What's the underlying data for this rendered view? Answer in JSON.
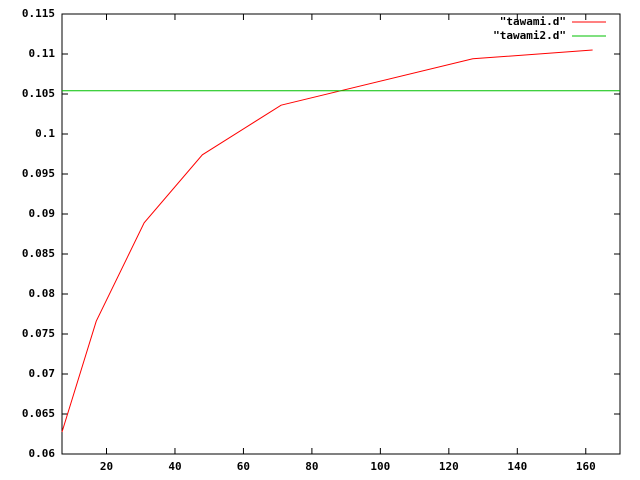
{
  "chart_data": {
    "type": "line",
    "xlim": [
      7,
      170
    ],
    "ylim": [
      0.06,
      0.115
    ],
    "xticks": [
      20,
      40,
      60,
      80,
      100,
      120,
      140,
      160
    ],
    "yticks": [
      0.06,
      0.065,
      0.07,
      0.075,
      0.08,
      0.085,
      0.09,
      0.095,
      0.1,
      0.105,
      0.11,
      0.115
    ],
    "legend": "top-right",
    "series": [
      {
        "name": "\"tawami.d\"",
        "color": "#ff0000",
        "x": [
          7,
          17,
          31,
          48,
          71,
          127,
          162
        ],
        "values": [
          0.06275,
          0.0766,
          0.0889,
          0.0974,
          0.1036,
          0.1094,
          0.1105
        ]
      },
      {
        "name": "\"tawami2.d\"",
        "color": "#00c000",
        "x": [
          7,
          170
        ],
        "values": [
          0.1054,
          0.1054
        ]
      }
    ]
  }
}
